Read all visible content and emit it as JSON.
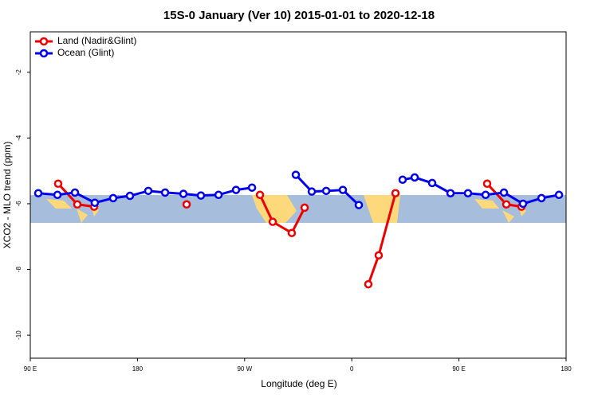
{
  "chart_data": {
    "type": "line",
    "title": "15S-0 January (Ver 10)   2015-01-01 to 2020-12-18",
    "xlabel": "Longitude (deg E)",
    "ylabel": "XCO2 - MLO trend (ppm)",
    "xlim": [
      90,
      540
    ],
    "ylim": [
      -10.7,
      -0.77
    ],
    "xticks": [
      {
        "value": 90,
        "label": "90 E"
      },
      {
        "value": 180,
        "label": "180"
      },
      {
        "value": 270,
        "label": "90 W"
      },
      {
        "value": 360,
        "label": "0"
      },
      {
        "value": 450,
        "label": "90 E"
      },
      {
        "value": 540,
        "label": "180"
      }
    ],
    "yticks": [
      -2,
      -4,
      -6,
      -8,
      -10
    ],
    "legend": "top-left",
    "series": [
      {
        "name": "Land (Nadir&Glint)",
        "color": "#ee0000",
        "x": [
          113.4,
          129.5,
          143.6,
          null,
          221.3,
          null,
          282.9,
          293.6,
          309.6,
          320.4,
          null,
          373.9,
          382.6,
          396.7,
          null,
          473.7,
          489.8,
          502.5
        ],
        "values": [
          -5.39,
          -6.02,
          -6.09,
          null,
          -6.02,
          null,
          -5.73,
          -6.55,
          -6.89,
          -6.12,
          null,
          -8.45,
          -7.57,
          -5.68,
          null,
          -5.39,
          -6.02,
          -6.09
        ]
      },
      {
        "name": "Ocean (Glint)",
        "color": "#0000ee",
        "x": [
          96.7,
          112.8,
          127.5,
          144.2,
          159.6,
          173.7,
          189.1,
          203.2,
          218.6,
          233.3,
          248.1,
          262.8,
          276.2,
          null,
          313.0,
          326.4,
          338.5,
          352.5,
          365.9,
          null,
          402.7,
          412.8,
          427.5,
          442.9,
          457.6,
          472.4,
          487.8,
          503.8,
          519.3,
          534.0
        ],
        "values": [
          -5.68,
          -5.73,
          -5.66,
          -5.97,
          -5.83,
          -5.76,
          -5.61,
          -5.66,
          -5.7,
          -5.75,
          -5.73,
          -5.58,
          -5.51,
          null,
          -5.12,
          -5.63,
          -5.61,
          -5.58,
          -6.04,
          null,
          -5.27,
          -5.2,
          -5.37,
          -5.68,
          -5.68,
          -5.73,
          -5.66,
          -6.0,
          -5.83,
          -5.73
        ]
      }
    ]
  }
}
